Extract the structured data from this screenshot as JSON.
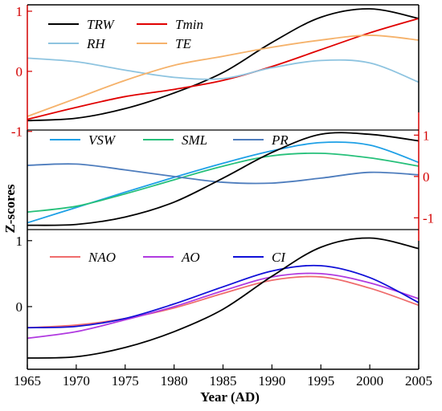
{
  "chart_data": {
    "type": "line",
    "x_axis": {
      "label": "Year (AD)",
      "range": [
        1965,
        2005
      ],
      "ticks": [
        1965,
        1970,
        1975,
        1980,
        1985,
        1990,
        1995,
        2000,
        2005
      ]
    },
    "y_axis": {
      "label": "Z-scores"
    },
    "panels": [
      {
        "id": "top",
        "y_ticks": {
          "left": [
            "1",
            "0",
            "-1"
          ],
          "left_values": [
            1,
            0,
            -1
          ],
          "left_color": "#d40000"
        },
        "ylim": [
          -0.95,
          1.12
        ],
        "series": [
          {
            "name": "TRW",
            "color": "#000000",
            "x": [
              1965,
              1970,
              1975,
              1980,
              1985,
              1990,
              1995,
              2000,
              2005
            ],
            "y": [
              -0.82,
              -0.78,
              -0.62,
              -0.36,
              -0.02,
              0.48,
              0.9,
              1.04,
              0.88
            ]
          },
          {
            "name": "Tmin",
            "color": "#e00000",
            "x": [
              1965,
              1970,
              1975,
              1980,
              1985,
              1990,
              1995,
              2000,
              2005
            ],
            "y": [
              -0.8,
              -0.6,
              -0.42,
              -0.3,
              -0.15,
              0.08,
              0.36,
              0.64,
              0.88
            ]
          },
          {
            "name": "RH",
            "color": "#8ec4e0",
            "x": [
              1965,
              1970,
              1975,
              1980,
              1985,
              1990,
              1995,
              2000,
              2005
            ],
            "y": [
              0.22,
              0.16,
              0.02,
              -0.1,
              -0.12,
              0.06,
              0.18,
              0.14,
              -0.18
            ]
          },
          {
            "name": "TE",
            "color": "#f5b26b",
            "x": [
              1965,
              1970,
              1975,
              1980,
              1985,
              1990,
              1995,
              2000,
              2005
            ],
            "y": [
              -0.75,
              -0.45,
              -0.15,
              0.1,
              0.25,
              0.4,
              0.52,
              0.6,
              0.52
            ]
          }
        ]
      },
      {
        "id": "middle",
        "y_ticks": {
          "right": [
            "1",
            "0",
            "-1"
          ],
          "right_values": [
            1,
            0,
            -1
          ],
          "right_color": "#d40000"
        },
        "ylim": [
          -1.75,
          1.55
        ],
        "series": [
          {
            "name": "VSW",
            "color": "#1ea0e6",
            "x": [
              1965,
              1970,
              1975,
              1980,
              1985,
              1990,
              1995,
              2000,
              2005
            ],
            "y": [
              -1.12,
              -0.75,
              -0.38,
              -0.02,
              0.32,
              0.62,
              0.82,
              0.76,
              0.34
            ]
          },
          {
            "name": "SML",
            "color": "#26c07a",
            "x": [
              1965,
              1970,
              1975,
              1980,
              1985,
              1990,
              1995,
              2000,
              2005
            ],
            "y": [
              -0.86,
              -0.72,
              -0.42,
              -0.08,
              0.25,
              0.5,
              0.56,
              0.45,
              0.25
            ]
          },
          {
            "name": "PR",
            "color": "#4e7dbd",
            "x": [
              1965,
              1970,
              1975,
              1980,
              1985,
              1990,
              1995,
              2000,
              2005
            ],
            "y": [
              0.27,
              0.3,
              0.16,
              0.0,
              -0.14,
              -0.16,
              -0.04,
              0.1,
              0.04
            ]
          },
          {
            "name": "TRW",
            "color": "#000000",
            "in_legend": false,
            "x": [
              1965,
              1970,
              1975,
              1980,
              1985,
              1990,
              1995,
              2000,
              2005
            ],
            "y": [
              -1.18,
              -1.16,
              -0.98,
              -0.62,
              -0.04,
              0.58,
              1.02,
              1.02,
              0.86
            ]
          }
        ]
      },
      {
        "id": "bottom",
        "y_ticks": {
          "left": [
            "1",
            "0"
          ],
          "left_values": [
            1,
            0
          ],
          "left_color": "#000000"
        },
        "ylim": [
          -0.95,
          1.18
        ],
        "series": [
          {
            "name": "NAO",
            "color": "#ef6c6c",
            "x": [
              1965,
              1970,
              1975,
              1980,
              1985,
              1990,
              1995,
              2000,
              2005
            ],
            "y": [
              -0.32,
              -0.28,
              -0.18,
              -0.02,
              0.2,
              0.4,
              0.45,
              0.28,
              0.02
            ]
          },
          {
            "name": "AO",
            "color": "#b03ae0",
            "x": [
              1965,
              1970,
              1975,
              1980,
              1985,
              1990,
              1995,
              2000,
              2005
            ],
            "y": [
              -0.48,
              -0.38,
              -0.2,
              0.0,
              0.24,
              0.45,
              0.5,
              0.36,
              0.12
            ]
          },
          {
            "name": "CI",
            "color": "#1010d8",
            "x": [
              1965,
              1970,
              1975,
              1980,
              1985,
              1990,
              1995,
              2000,
              2005
            ],
            "y": [
              -0.32,
              -0.3,
              -0.18,
              0.04,
              0.3,
              0.54,
              0.62,
              0.44,
              0.06
            ]
          },
          {
            "name": "TRW",
            "color": "#000000",
            "in_legend": false,
            "x": [
              1965,
              1970,
              1975,
              1980,
              1985,
              1990,
              1995,
              2000,
              2005
            ],
            "y": [
              -0.78,
              -0.76,
              -0.62,
              -0.38,
              -0.04,
              0.46,
              0.9,
              1.04,
              0.88
            ]
          }
        ]
      }
    ]
  }
}
